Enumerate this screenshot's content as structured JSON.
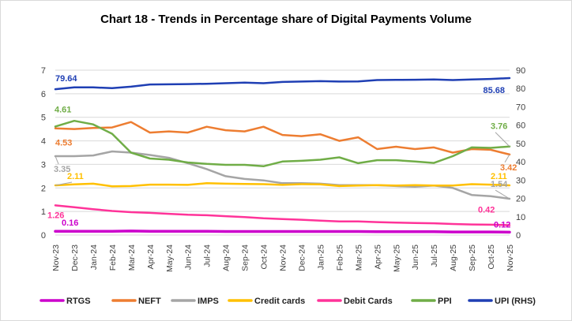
{
  "chart_data": {
    "type": "line",
    "title": "Chart 18 - Trends in Percentage share of Digital Payments Volume",
    "categories": [
      "Nov-23",
      "Dec-23",
      "Jan-24",
      "Feb-24",
      "Mar-24",
      "Apr-24",
      "May-24",
      "Jun-24",
      "Jul-24",
      "Aug-24",
      "Sep-24",
      "Oct-24",
      "Nov-24",
      "Dec-24",
      "Jan-25",
      "Feb-25",
      "Mar-25",
      "Apr-25",
      "May-25",
      "Jun-25",
      "Jul-25",
      "Aug-25",
      "Sep-25",
      "Oct-25",
      "Nov-25"
    ],
    "y_left": {
      "min": 0,
      "max": 7,
      "ticks": [
        0,
        1,
        2,
        3,
        4,
        5,
        6,
        7
      ]
    },
    "y_right": {
      "min": 0,
      "max": 90,
      "ticks": [
        0,
        10,
        20,
        30,
        40,
        50,
        60,
        70,
        80,
        90
      ]
    },
    "grid": true,
    "legend_position": "bottom",
    "series": [
      {
        "name": "RTGS",
        "color": "#cc00cc",
        "axis": "left",
        "values": [
          0.16,
          0.16,
          0.16,
          0.16,
          0.17,
          0.16,
          0.16,
          0.16,
          0.16,
          0.15,
          0.15,
          0.15,
          0.15,
          0.15,
          0.15,
          0.15,
          0.15,
          0.14,
          0.14,
          0.14,
          0.14,
          0.13,
          0.13,
          0.13,
          0.12
        ]
      },
      {
        "name": "NEFT",
        "color": "#ed7d31",
        "axis": "left",
        "values": [
          4.53,
          4.5,
          4.55,
          4.57,
          4.8,
          4.35,
          4.4,
          4.35,
          4.6,
          4.45,
          4.4,
          4.6,
          4.25,
          4.2,
          4.28,
          4.0,
          4.15,
          3.65,
          3.75,
          3.65,
          3.72,
          3.5,
          3.65,
          3.62,
          3.42
        ]
      },
      {
        "name": "IMPS",
        "color": "#a5a5a5",
        "axis": "left",
        "values": [
          3.35,
          3.35,
          3.38,
          3.55,
          3.5,
          3.4,
          3.28,
          3.05,
          2.8,
          2.5,
          2.38,
          2.32,
          2.2,
          2.2,
          2.18,
          2.12,
          2.12,
          2.12,
          2.08,
          2.05,
          2.1,
          2.0,
          1.7,
          1.65,
          1.54
        ]
      },
      {
        "name": "Credit cards",
        "color": "#ffc000",
        "axis": "left",
        "values": [
          2.11,
          2.15,
          2.18,
          2.07,
          2.08,
          2.14,
          2.14,
          2.13,
          2.2,
          2.18,
          2.17,
          2.16,
          2.13,
          2.16,
          2.15,
          2.08,
          2.1,
          2.12,
          2.1,
          2.12,
          2.1,
          2.1,
          2.16,
          2.14,
          2.11
        ]
      },
      {
        "name": "Debit Cards",
        "color": "#ff3399",
        "axis": "left",
        "values": [
          1.26,
          1.18,
          1.1,
          1.02,
          0.97,
          0.94,
          0.9,
          0.86,
          0.84,
          0.8,
          0.76,
          0.71,
          0.68,
          0.65,
          0.61,
          0.58,
          0.58,
          0.55,
          0.53,
          0.51,
          0.5,
          0.47,
          0.45,
          0.44,
          0.42
        ]
      },
      {
        "name": "PPI",
        "color": "#70ad47",
        "axis": "left",
        "values": [
          4.61,
          4.85,
          4.7,
          4.3,
          3.5,
          3.25,
          3.2,
          3.08,
          3.02,
          2.98,
          2.98,
          2.92,
          3.12,
          3.15,
          3.2,
          3.3,
          3.05,
          3.18,
          3.18,
          3.12,
          3.06,
          3.35,
          3.72,
          3.7,
          3.76
        ]
      },
      {
        "name": "UPI (RHS)",
        "color": "#1f3fb4",
        "axis": "right",
        "values": [
          79.64,
          80.6,
          80.6,
          80.2,
          81.0,
          82.2,
          82.3,
          82.4,
          82.6,
          82.9,
          83.2,
          82.9,
          83.6,
          83.8,
          84.0,
          83.8,
          83.9,
          84.6,
          84.7,
          84.8,
          84.9,
          84.6,
          84.9,
          85.2,
          85.68
        ]
      }
    ],
    "data_labels": [
      {
        "series": "UPI (RHS)",
        "point": 0,
        "text": "79.64"
      },
      {
        "series": "UPI (RHS)",
        "point": 24,
        "text": "85.68"
      },
      {
        "series": "PPI",
        "point": 0,
        "text": "4.61"
      },
      {
        "series": "NEFT",
        "point": 0,
        "text": "4.53"
      },
      {
        "series": "PPI",
        "point": 24,
        "text": "3.76"
      },
      {
        "series": "NEFT",
        "point": 24,
        "text": "3.42"
      },
      {
        "series": "IMPS",
        "point": 0,
        "text": "3.35"
      },
      {
        "series": "Credit cards",
        "point": 0,
        "text": "2.11"
      },
      {
        "series": "Credit cards",
        "point": 24,
        "text": "2.11"
      },
      {
        "series": "IMPS",
        "point": 24,
        "text": "1.54"
      },
      {
        "series": "Debit Cards",
        "point": 0,
        "text": "1.26"
      },
      {
        "series": "RTGS",
        "point": 0,
        "text": "0.16"
      },
      {
        "series": "Debit Cards",
        "point": 24,
        "text": "0.42"
      },
      {
        "series": "RTGS",
        "point": 24,
        "text": "0.12"
      }
    ]
  }
}
